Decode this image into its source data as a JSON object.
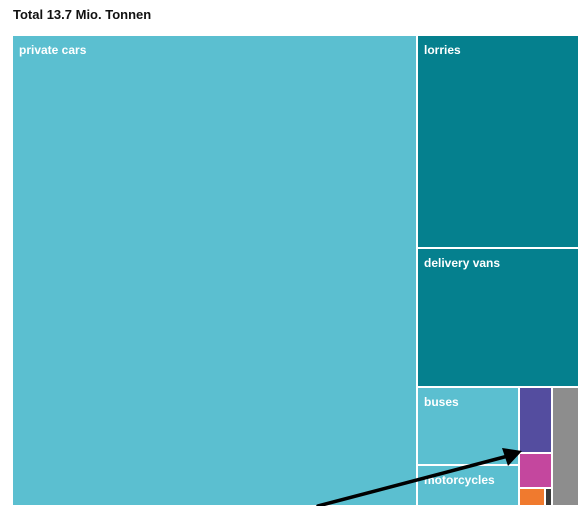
{
  "chart_data": {
    "type": "treemap",
    "title": "Total 13.7 Mio. Tonnen",
    "cells": [
      {
        "label": "private cars",
        "color": "#5bbfd0"
      },
      {
        "label": "lorries",
        "color": "#05808e"
      },
      {
        "label": "delivery vans",
        "color": "#05808e"
      },
      {
        "label": "buses",
        "color": "#5bbfd0"
      },
      {
        "label": "motorcycles",
        "color": "#5bbfd0"
      },
      {
        "label": "",
        "color": "#544d9f"
      },
      {
        "label": "",
        "color": "#c4479e"
      },
      {
        "label": "",
        "color": "#f07a2e"
      },
      {
        "label": "",
        "color": "#3a3a3a"
      },
      {
        "label": "",
        "color": "#8d8d8d"
      }
    ],
    "annotation": {
      "type": "arrow",
      "color": "#000000"
    }
  }
}
